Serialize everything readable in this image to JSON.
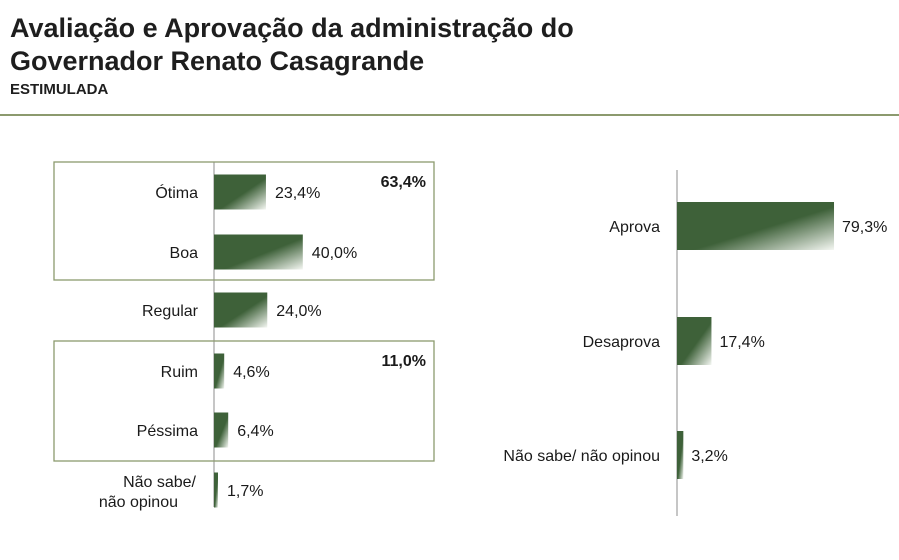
{
  "header": {
    "title_line1": "Avaliação e Aprovação da administração do",
    "title_line2": "Governador Renato Casagrande",
    "subtitle": "ESTIMULADA"
  },
  "colors": {
    "bar_dark": "#3e6139",
    "bar_light": "#f4f7f2",
    "box_border": "#8c9a6e",
    "axis": "#8c8c8c"
  },
  "chart_data": [
    {
      "type": "bar",
      "orientation": "horizontal",
      "categories": [
        "Ótima",
        "Boa",
        "Regular",
        "Ruim",
        "Péssima",
        "Não sabe/ não opinou"
      ],
      "values": [
        23.4,
        40.0,
        24.0,
        4.6,
        6.4,
        1.7
      ],
      "value_labels": [
        "23,4%",
        "40,0%",
        "24,0%",
        "4,6%",
        "6,4%",
        "1,7%"
      ],
      "groups": [
        {
          "label": "63,4%",
          "members": [
            "Ótima",
            "Boa"
          ]
        },
        {
          "label": "11,0%",
          "members": [
            "Ruim",
            "Péssima"
          ]
        }
      ],
      "grid": false
    },
    {
      "type": "bar",
      "orientation": "horizontal",
      "categories": [
        "Aprova",
        "Desaprova",
        "Não sabe/ não opinou"
      ],
      "values": [
        79.3,
        17.4,
        3.2
      ],
      "value_labels": [
        "79,3%",
        "17,4%",
        "3,2%"
      ],
      "grid": false
    }
  ]
}
